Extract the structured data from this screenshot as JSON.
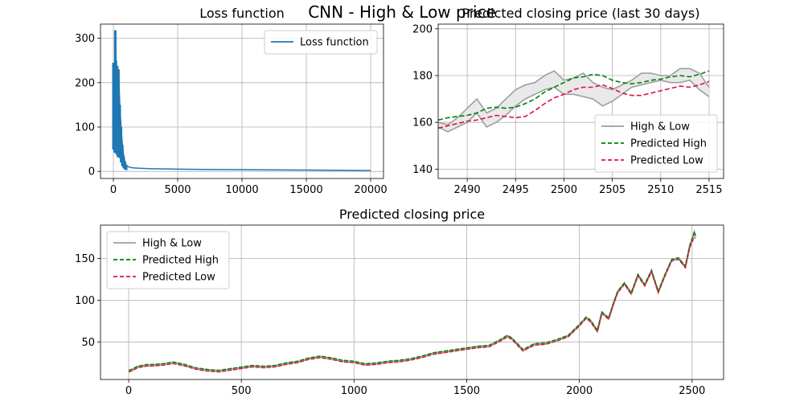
{
  "figure": {
    "suptitle": "CNN - High & Low price",
    "colors": {
      "loss": "#1f77b4",
      "high_low": "#9e9e9e",
      "high_low_fill": "#e9e9e9",
      "pred_high": "#008000",
      "pred_low": "#dc143c",
      "grid": "#b0b0b0"
    }
  },
  "chart_data": [
    {
      "type": "line",
      "title": "Loss function",
      "xlabel": "",
      "ylabel": "",
      "xlim": [
        -1000,
        21000
      ],
      "ylim": [
        -16,
        332
      ],
      "xticks": [
        0,
        5000,
        10000,
        15000,
        20000
      ],
      "yticks": [
        0,
        100,
        200,
        300
      ],
      "grid": true,
      "legend": {
        "position": "top-right",
        "entries": [
          "Loss function"
        ]
      },
      "series": [
        {
          "name": "Loss function",
          "color": "#1f77b4",
          "style": "solid",
          "x": [
            0,
            100,
            150,
            200,
            250,
            300,
            350,
            400,
            500,
            600,
            700,
            800,
            900,
            1000,
            1200,
            1500,
            2000,
            3000,
            5000,
            7000,
            10000,
            12000,
            15000,
            17000,
            20000
          ],
          "y": [
            245,
            210,
            318,
            250,
            190,
            238,
            160,
            230,
            150,
            100,
            60,
            35,
            22,
            14,
            10,
            8,
            7,
            6,
            5,
            4.5,
            4,
            3.5,
            3,
            2.5,
            2
          ]
        }
      ]
    },
    {
      "type": "line",
      "title": "Predicted closing price (last 30 days)",
      "xlabel": "",
      "ylabel": "",
      "xlim": [
        2487,
        2516.5
      ],
      "ylim": [
        136,
        202
      ],
      "xticks": [
        2490,
        2495,
        2500,
        2505,
        2510,
        2515
      ],
      "yticks": [
        140,
        160,
        180,
        200
      ],
      "grid": true,
      "legend": {
        "position": "lower-right",
        "entries": [
          "High & Low",
          "Predicted High",
          "Predicted Low"
        ]
      },
      "x": [
        2487,
        2488,
        2489,
        2490,
        2491,
        2492,
        2493,
        2494,
        2495,
        2496,
        2497,
        2498,
        2499,
        2500,
        2501,
        2502,
        2503,
        2504,
        2505,
        2506,
        2507,
        2508,
        2509,
        2510,
        2511,
        2512,
        2513,
        2514,
        2515
      ],
      "series": [
        {
          "name": "High",
          "color": "#9e9e9e",
          "style": "solid",
          "values": [
            160,
            159,
            162,
            166,
            170,
            164,
            166,
            170,
            174,
            176,
            177,
            180,
            182,
            178,
            179,
            181,
            177,
            175,
            174,
            176,
            178,
            181,
            181,
            180,
            180,
            183,
            183,
            181,
            175
          ]
        },
        {
          "name": "Low",
          "color": "#9e9e9e",
          "style": "solid",
          "values": [
            158,
            156,
            158,
            160,
            164,
            158,
            160,
            163,
            167,
            170,
            172,
            174,
            175,
            172,
            172,
            171,
            170,
            167,
            169,
            172,
            175,
            176,
            177,
            178,
            177,
            177,
            178,
            174,
            171
          ]
        },
        {
          "name": "Predicted High",
          "color": "#008000",
          "style": "dashed",
          "values": [
            161,
            162,
            162.5,
            163,
            164,
            166,
            166.5,
            166,
            166.5,
            168,
            170,
            173,
            175,
            177,
            179,
            179.5,
            180.5,
            180,
            178,
            177,
            176.5,
            177,
            178,
            178.5,
            179.5,
            180,
            179.5,
            180.5,
            182
          ]
        },
        {
          "name": "Predicted Low",
          "color": "#dc143c",
          "style": "dashed",
          "values": [
            157.5,
            158.5,
            159.5,
            160.5,
            161,
            162,
            163,
            162.5,
            162,
            162.5,
            165,
            168,
            170.5,
            172,
            174,
            175,
            175,
            176,
            174.5,
            172.5,
            171.5,
            171.5,
            172.5,
            173.5,
            174.5,
            175.5,
            175,
            176,
            177.5
          ]
        }
      ]
    },
    {
      "type": "line",
      "title": "Predicted closing price",
      "xlabel": "",
      "ylabel": "",
      "xlim": [
        -125,
        2640
      ],
      "ylim": [
        5,
        190
      ],
      "xticks": [
        0,
        500,
        1000,
        1500,
        2000,
        2500
      ],
      "yticks": [
        50,
        100,
        150
      ],
      "grid": true,
      "legend": {
        "position": "top-left",
        "entries": [
          "High & Low",
          "Predicted High",
          "Predicted Low"
        ]
      },
      "series": [
        {
          "name": "Close",
          "color": "#9e9e9e",
          "style": "solid",
          "x": [
            0,
            20,
            40,
            60,
            80,
            100,
            150,
            200,
            250,
            300,
            350,
            400,
            450,
            500,
            550,
            600,
            650,
            700,
            750,
            800,
            850,
            900,
            950,
            1000,
            1050,
            1100,
            1150,
            1200,
            1250,
            1300,
            1350,
            1400,
            1450,
            1500,
            1550,
            1600,
            1650,
            1680,
            1700,
            1750,
            1800,
            1850,
            1900,
            1950,
            2000,
            2030,
            2050,
            2080,
            2100,
            2130,
            2150,
            2170,
            2200,
            2230,
            2260,
            2290,
            2320,
            2350,
            2380,
            2410,
            2440,
            2470,
            2490,
            2500,
            2510,
            2515
          ],
          "y": [
            15,
            17,
            20,
            21,
            22,
            22,
            23,
            25,
            22,
            18,
            16,
            15,
            17,
            19,
            21,
            20,
            21,
            24,
            26,
            30,
            32,
            30,
            27,
            26,
            23,
            24,
            26,
            27,
            29,
            32,
            36,
            38,
            40,
            42,
            44,
            45,
            52,
            57,
            54,
            40,
            47,
            48,
            52,
            57,
            70,
            79,
            75,
            63,
            85,
            78,
            95,
            110,
            120,
            108,
            130,
            118,
            135,
            110,
            130,
            148,
            150,
            140,
            165,
            172,
            181,
            176
          ]
        },
        {
          "name": "Predicted High",
          "color": "#008000",
          "style": "dashed",
          "x": [
            0,
            20,
            40,
            60,
            80,
            100,
            150,
            200,
            250,
            300,
            350,
            400,
            450,
            500,
            550,
            600,
            650,
            700,
            750,
            800,
            850,
            900,
            950,
            1000,
            1050,
            1100,
            1150,
            1200,
            1250,
            1300,
            1350,
            1400,
            1450,
            1500,
            1550,
            1600,
            1650,
            1680,
            1700,
            1750,
            1800,
            1850,
            1900,
            1950,
            2000,
            2030,
            2050,
            2080,
            2100,
            2130,
            2150,
            2170,
            2200,
            2230,
            2260,
            2290,
            2320,
            2350,
            2380,
            2410,
            2440,
            2470,
            2490,
            2500,
            2510,
            2515
          ],
          "y": [
            16,
            18,
            21,
            22,
            23,
            23,
            24,
            26,
            23,
            19,
            17,
            16,
            18,
            20,
            22,
            21,
            22,
            25,
            27,
            31,
            33,
            31,
            28,
            27,
            24,
            25,
            27,
            28,
            30,
            33,
            37,
            39,
            41,
            43,
            45,
            46,
            53,
            58,
            55,
            41,
            48,
            49,
            53,
            58,
            71,
            80,
            76,
            64,
            86,
            79,
            96,
            111,
            121,
            109,
            131,
            119,
            136,
            111,
            131,
            149,
            151,
            141,
            166,
            174,
            182,
            178
          ]
        },
        {
          "name": "Predicted Low",
          "color": "#dc143c",
          "style": "dashed",
          "x": [
            0,
            20,
            40,
            60,
            80,
            100,
            150,
            200,
            250,
            300,
            350,
            400,
            450,
            500,
            550,
            600,
            650,
            700,
            750,
            800,
            850,
            900,
            950,
            1000,
            1050,
            1100,
            1150,
            1200,
            1250,
            1300,
            1350,
            1400,
            1450,
            1500,
            1550,
            1600,
            1650,
            1680,
            1700,
            1750,
            1800,
            1850,
            1900,
            1950,
            2000,
            2030,
            2050,
            2080,
            2100,
            2130,
            2150,
            2170,
            2200,
            2230,
            2260,
            2290,
            2320,
            2350,
            2380,
            2410,
            2440,
            2470,
            2490,
            2500,
            2510,
            2515
          ],
          "y": [
            14,
            16,
            19,
            20,
            21,
            21,
            22,
            24,
            21,
            17,
            15,
            14,
            16,
            18,
            20,
            19,
            20,
            23,
            25,
            29,
            31,
            29,
            26,
            25,
            22,
            23,
            25,
            26,
            28,
            31,
            35,
            37,
            39,
            41,
            43,
            44,
            51,
            56,
            53,
            39,
            46,
            47,
            51,
            56,
            69,
            78,
            74,
            62,
            84,
            77,
            94,
            109,
            119,
            107,
            129,
            117,
            134,
            109,
            129,
            147,
            149,
            139,
            163,
            170,
            175,
            174
          ]
        }
      ]
    }
  ]
}
